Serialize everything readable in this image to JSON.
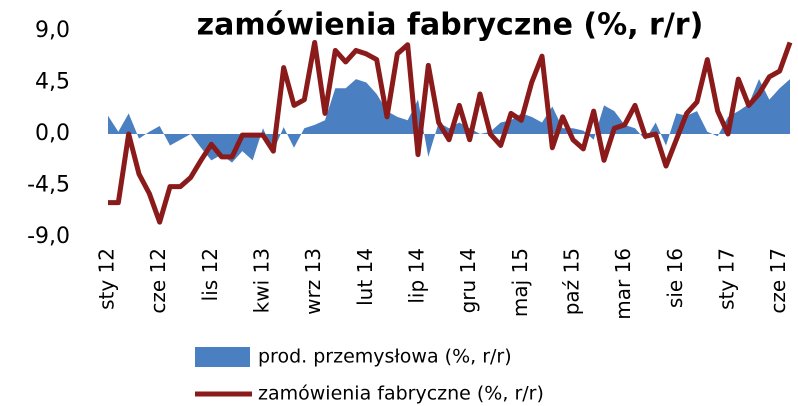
{
  "chart_data": {
    "type": "line",
    "title": "zamówienia fabryczne (%, r/r)",
    "categories": [
      "sty 12",
      null,
      null,
      null,
      null,
      "cze 12",
      null,
      null,
      null,
      null,
      "lis 12",
      null,
      null,
      null,
      null,
      "kwi 13",
      null,
      null,
      null,
      null,
      "wrz 13",
      null,
      null,
      null,
      null,
      "lut 14",
      null,
      null,
      null,
      null,
      "lip 14",
      null,
      null,
      null,
      null,
      "gru 14",
      null,
      null,
      null,
      null,
      "maj 15",
      null,
      null,
      null,
      null,
      "paź 15",
      null,
      null,
      null,
      null,
      "mar 16",
      null,
      null,
      null,
      null,
      "sie 16",
      null,
      null,
      null,
      null,
      "sty 17",
      null,
      null,
      null,
      null,
      "cze 17",
      null
    ],
    "series": [
      {
        "name": "prod. przemysłowa (%, r/r)",
        "type": "area",
        "color": "#4a7fc1",
        "values": [
          1.6,
          0.2,
          1.8,
          -0.4,
          0.2,
          0.7,
          -1.0,
          -0.5,
          0.0,
          -1.2,
          -2.3,
          -1.8,
          -2.5,
          -1.5,
          -2.3,
          0.5,
          -1.5,
          0.6,
          -1.2,
          0.5,
          0.8,
          1.2,
          4.0,
          4.0,
          4.8,
          4.5,
          3.5,
          2.0,
          1.5,
          1.2,
          3.0,
          -2.0,
          1.0,
          0.5,
          1.0,
          0.5,
          0.0,
          0.2,
          1.0,
          1.2,
          1.8,
          1.5,
          1.0,
          2.4,
          0.5,
          0.5,
          0.3,
          -0.5,
          2.5,
          2.0,
          0.8,
          0.5,
          -0.5,
          1.0,
          -1.0,
          1.8,
          1.6,
          2.0,
          0.2,
          -0.2,
          1.5,
          2.0,
          2.6,
          4.8,
          3.0,
          4.0,
          4.8
        ]
      },
      {
        "name": "zamówienia fabryczne (%, r/r)",
        "type": "line",
        "color": "#8b1a1a",
        "values": [
          -6.0,
          -6.0,
          0.0,
          -3.5,
          -5.2,
          -7.7,
          -4.6,
          -4.6,
          -3.8,
          -2.3,
          -0.9,
          -2.0,
          -2.0,
          -0.1,
          -0.1,
          -0.1,
          -1.5,
          5.8,
          2.5,
          3.0,
          8.0,
          1.8,
          7.3,
          6.3,
          7.3,
          7.0,
          6.5,
          1.5,
          7.0,
          7.8,
          -1.8,
          6.0,
          1.0,
          -0.5,
          2.5,
          -0.5,
          3.5,
          0.0,
          -1.0,
          1.8,
          1.2,
          4.5,
          6.8,
          -1.2,
          1.5,
          -0.5,
          -1.3,
          2.0,
          -2.3,
          0.5,
          0.8,
          2.5,
          -0.2,
          0.0,
          -2.8,
          -0.5,
          1.8,
          2.8,
          6.5,
          2.0,
          0.0,
          4.8,
          2.5,
          3.5,
          5.0,
          5.5,
          8.0
        ]
      }
    ],
    "ylim": [
      -9,
      9
    ],
    "yticks": [
      {
        "value": -9,
        "label": "-9,0"
      },
      {
        "value": -4.5,
        "label": "-4,5"
      },
      {
        "value": 0,
        "label": "0,0"
      },
      {
        "value": 4.5,
        "label": "4,5"
      },
      {
        "value": 9,
        "label": "9,0"
      }
    ]
  }
}
